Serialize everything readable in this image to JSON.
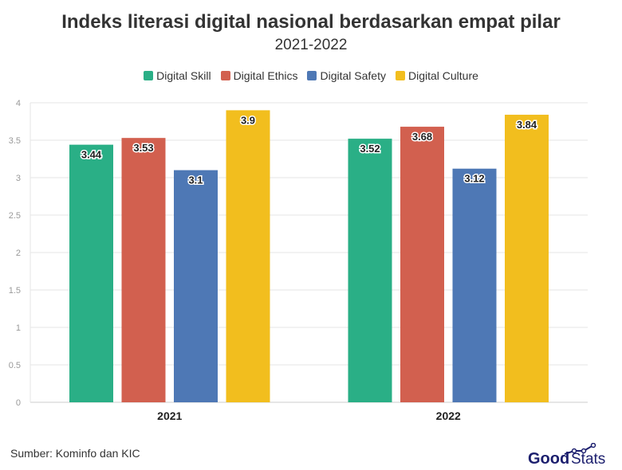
{
  "chart_data": {
    "type": "bar",
    "title": "Indeks literasi digital nasional berdasarkan empat pilar",
    "subtitle": "2021-2022",
    "categories": [
      "2021",
      "2022"
    ],
    "series": [
      {
        "name": "Digital Skill",
        "values": [
          3.44,
          3.52
        ],
        "color": "#2aaf86"
      },
      {
        "name": "Digital Ethics",
        "values": [
          3.53,
          3.68
        ],
        "color": "#d2604f"
      },
      {
        "name": "Digital Safety",
        "values": [
          3.1,
          3.12
        ],
        "color": "#4e78b5"
      },
      {
        "name": "Digital Culture",
        "values": [
          3.9,
          3.84
        ],
        "color": "#f2be1e"
      }
    ],
    "yticks": [
      "0",
      "0.5",
      "1",
      "1.5",
      "2",
      "2.5",
      "3",
      "3.5",
      "4"
    ],
    "ylim": [
      0,
      4
    ],
    "grid": true,
    "legend": "top",
    "data_labels": true
  },
  "source": "Sumber: Kominfo dan KIC",
  "logo": "GoodStats"
}
